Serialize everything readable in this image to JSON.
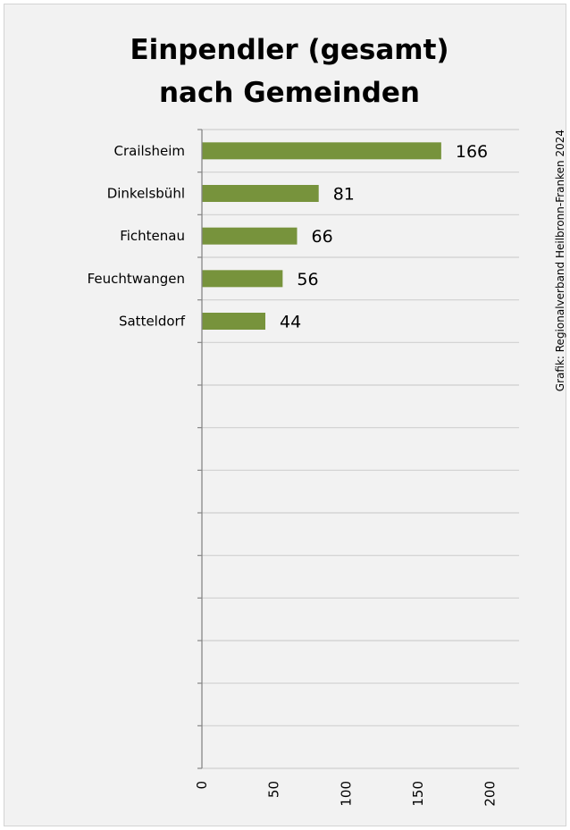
{
  "chart_data": {
    "type": "bar",
    "orientation": "horizontal",
    "title": "Einpendler (gesamt) nach Gemeinden",
    "title_lines": [
      "Einpendler (gesamt)",
      "nach Gemeinden"
    ],
    "categories": [
      "Crailsheim",
      "Dinkelsbühl",
      "Fichtenau",
      "Feuchtwangen",
      "Satteldorf"
    ],
    "values": [
      166,
      81,
      66,
      56,
      44
    ],
    "data_labels": [
      "166",
      "81",
      "66",
      "56",
      "44"
    ],
    "xlim": [
      0,
      220
    ],
    "x_ticks": [
      "0",
      "50",
      "100",
      "150",
      "200"
    ],
    "tick_values": [
      0,
      50,
      100,
      150,
      200
    ],
    "xlabel": "",
    "ylabel": "",
    "grid": true,
    "bar_color": "#77933c",
    "background": "#f2f2f2",
    "credit": "Grafik: Regionalverband Heilbronn-Franken 2024"
  }
}
